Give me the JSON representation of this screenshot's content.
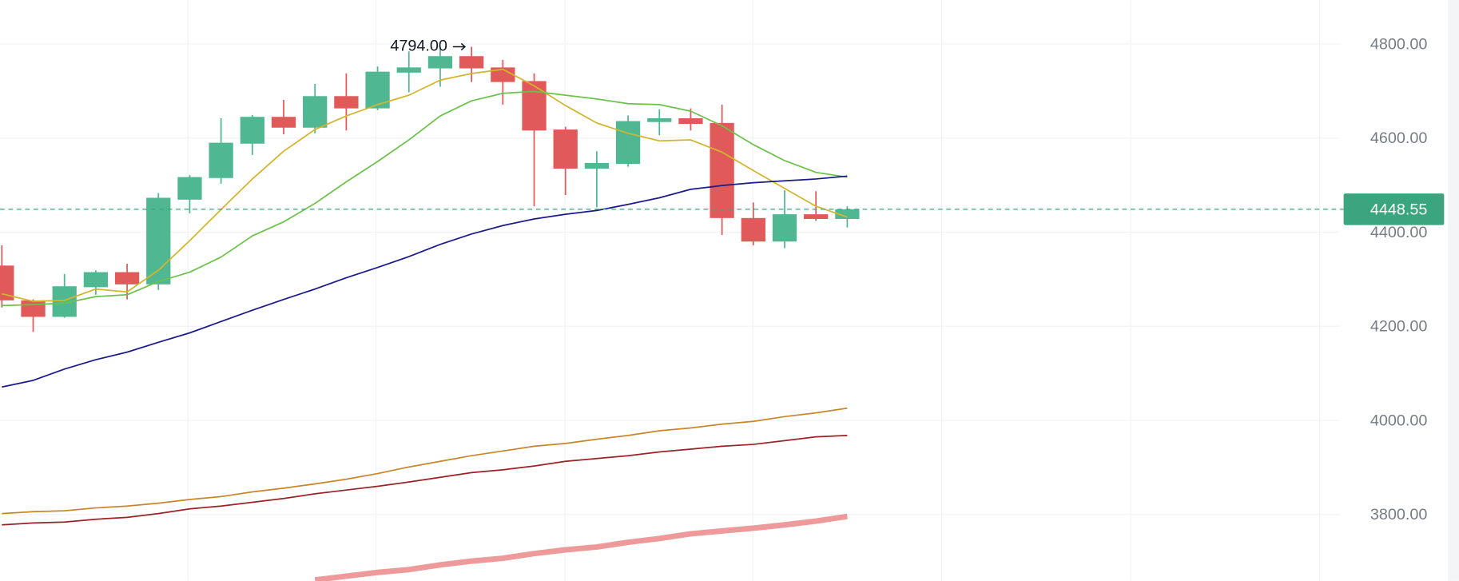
{
  "chart_data": {
    "type": "candlestick",
    "ylim": [
      3659,
      4893
    ],
    "yticks": [
      {
        "value": 4800,
        "label": "4800.00"
      },
      {
        "value": 4600,
        "label": "4600.00"
      },
      {
        "value": 4400,
        "label": "4400.00"
      },
      {
        "value": 4200,
        "label": "4200.00"
      },
      {
        "value": 4000,
        "label": "4000.00"
      },
      {
        "value": 3800,
        "label": "3800.00"
      }
    ],
    "grid": true,
    "up_color": "#4fb893",
    "down_color": "#e05a5a",
    "open": [
      4329,
      4255,
      4220,
      4283,
      4315,
      4289,
      4469,
      4515,
      4588,
      4645,
      4622,
      4689,
      4663,
      4739,
      4748,
      4774,
      4750,
      4721,
      4618,
      4535,
      4545,
      4634,
      4642,
      4632,
      4430,
      4380,
      4438,
      4428
    ],
    "high": [
      4372,
      4257,
      4311,
      4319,
      4333,
      4483,
      4521,
      4642,
      4649,
      4681,
      4715,
      4737,
      4752,
      4784,
      4790,
      4794,
      4766,
      4737,
      4624,
      4572,
      4648,
      4661,
      4663,
      4671,
      4463,
      4489,
      4487,
      4455
    ],
    "low": [
      4240,
      4188,
      4218,
      4267,
      4257,
      4277,
      4440,
      4503,
      4564,
      4608,
      4610,
      4616,
      4659,
      4697,
      4709,
      4719,
      4671,
      4455,
      4479,
      4453,
      4539,
      4606,
      4616,
      4394,
      4372,
      4366,
      4424,
      4410
    ],
    "close": [
      4255,
      4220,
      4285,
      4315,
      4289,
      4473,
      4517,
      4590,
      4645,
      4622,
      4689,
      4663,
      4741,
      4750,
      4774,
      4748,
      4719,
      4616,
      4535,
      4547,
      4636,
      4642,
      4630,
      4430,
      4380,
      4438,
      4428,
      4448.55
    ],
    "max_label": "4794.00",
    "last_price": {
      "value": 4448.55,
      "label": "4448.55"
    },
    "last_price_color": "#3aa57f",
    "series": [
      {
        "color": "#d4b52a",
        "width": 1.5,
        "values": [
          4269,
          4253,
          4255,
          4279,
          4273,
          4319,
          4382,
          4448,
          4513,
          4572,
          4618,
          4647,
          4671,
          4691,
          4723,
          4737,
          4746,
          4711,
          4669,
          4632,
          4610,
          4594,
          4596,
          4570,
          4531,
          4493,
          4455,
          4432
        ]
      },
      {
        "color": "#6cc24a",
        "width": 1.5,
        "values": [
          4244,
          4246,
          4249,
          4263,
          4267,
          4295,
          4315,
          4347,
          4392,
          4422,
          4461,
          4507,
          4550,
          4596,
          4647,
          4679,
          4695,
          4699,
          4691,
          4683,
          4673,
          4671,
          4657,
          4626,
          4586,
          4552,
          4527,
          4517
        ]
      },
      {
        "color": "#1a1a8c",
        "width": 1.5,
        "values": [
          4071,
          4085,
          4109,
          4129,
          4145,
          4166,
          4186,
          4210,
          4234,
          4257,
          4279,
          4303,
          4325,
          4348,
          4374,
          4396,
          4414,
          4428,
          4438,
          4446,
          4459,
          4473,
          4491,
          4499,
          4505,
          4509,
          4513,
          4519
        ]
      },
      {
        "color": "#c8862a",
        "width": 1.5,
        "values": [
          3802,
          3806,
          3808,
          3814,
          3818,
          3824,
          3832,
          3838,
          3848,
          3856,
          3865,
          3875,
          3887,
          3901,
          3913,
          3925,
          3935,
          3945,
          3951,
          3960,
          3968,
          3978,
          3984,
          3992,
          3998,
          4008,
          4016,
          4026
        ]
      },
      {
        "color": "#9b2226",
        "width": 1.5,
        "values": [
          3778,
          3782,
          3784,
          3790,
          3794,
          3802,
          3812,
          3818,
          3826,
          3834,
          3844,
          3852,
          3860,
          3869,
          3879,
          3889,
          3895,
          3903,
          3913,
          3919,
          3925,
          3933,
          3939,
          3945,
          3949,
          3957,
          3965,
          3968
        ]
      },
      {
        "color": "#ef9a9a",
        "width": 6,
        "values": [
          null,
          null,
          null,
          null,
          null,
          null,
          null,
          null,
          null,
          null,
          3661,
          3669,
          3677,
          3683,
          3693,
          3701,
          3707,
          3717,
          3725,
          3731,
          3741,
          3749,
          3759,
          3765,
          3771,
          3778,
          3786,
          3796
        ]
      }
    ]
  }
}
